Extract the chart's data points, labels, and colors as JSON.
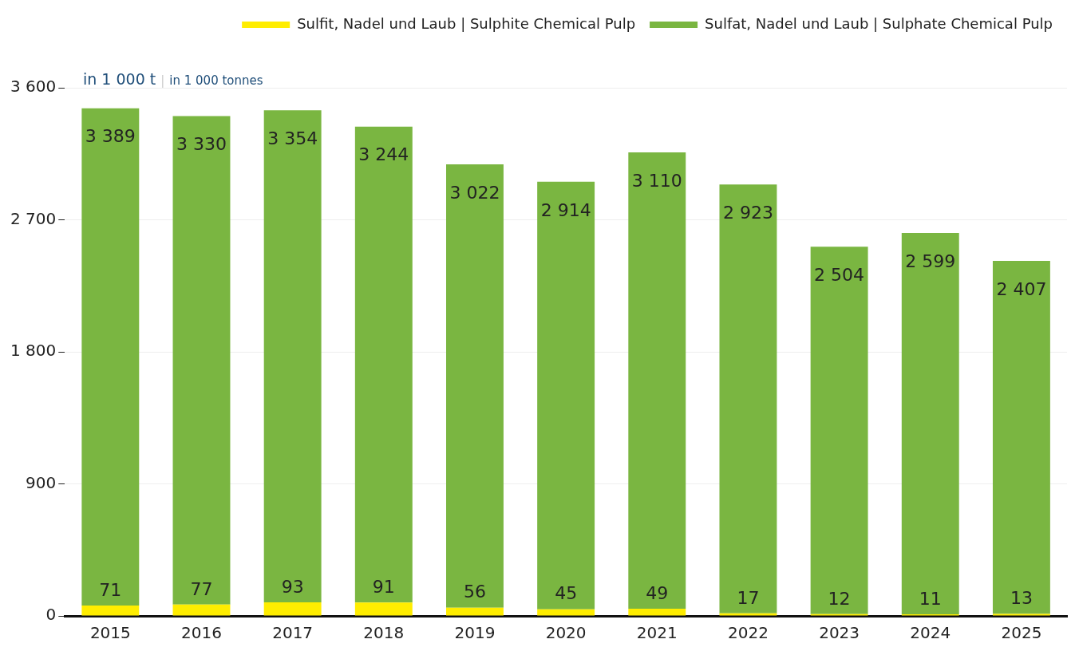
{
  "chart_data": {
    "type": "bar",
    "stacked": true,
    "ylabel": "in 1 000 t | in 1 000 tonnes",
    "categories": [
      "2015",
      "2016",
      "2017",
      "2018",
      "2019",
      "2020",
      "2021",
      "2022",
      "2023",
      "2024",
      "2025"
    ],
    "series": [
      {
        "name": "Sulfit, Nadel und Laub | Sulphite Chemical Pulp",
        "color": "#ffed00",
        "values": [
          71,
          77,
          93,
          91,
          56,
          45,
          49,
          17,
          12,
          11,
          13
        ],
        "value_labels": [
          "71",
          "77",
          "93",
          "91",
          "56",
          "45",
          "49",
          "17",
          "12",
          "11",
          "13"
        ]
      },
      {
        "name": "Sulfat, Nadel und Laub | Sulphate Chemical Pulp",
        "color": "#7ab641",
        "values": [
          3389,
          3330,
          3354,
          3244,
          3022,
          2914,
          3110,
          2923,
          2504,
          2599,
          2407
        ],
        "value_labels": [
          "3 389",
          "3 330",
          "3 354",
          "3 244",
          "3 022",
          "2 914",
          "3 110",
          "2 923",
          "2 504",
          "2 599",
          "2 407"
        ]
      }
    ],
    "ylim": [
      0,
      3600
    ],
    "yticks": [
      {
        "value": 0,
        "label": "0"
      },
      {
        "value": 900,
        "label": "900"
      },
      {
        "value": 1800,
        "label": "1 800"
      },
      {
        "value": 2700,
        "label": "2 700"
      },
      {
        "value": 3600,
        "label": "3 600"
      }
    ],
    "grid": "y",
    "legend": "top right"
  }
}
